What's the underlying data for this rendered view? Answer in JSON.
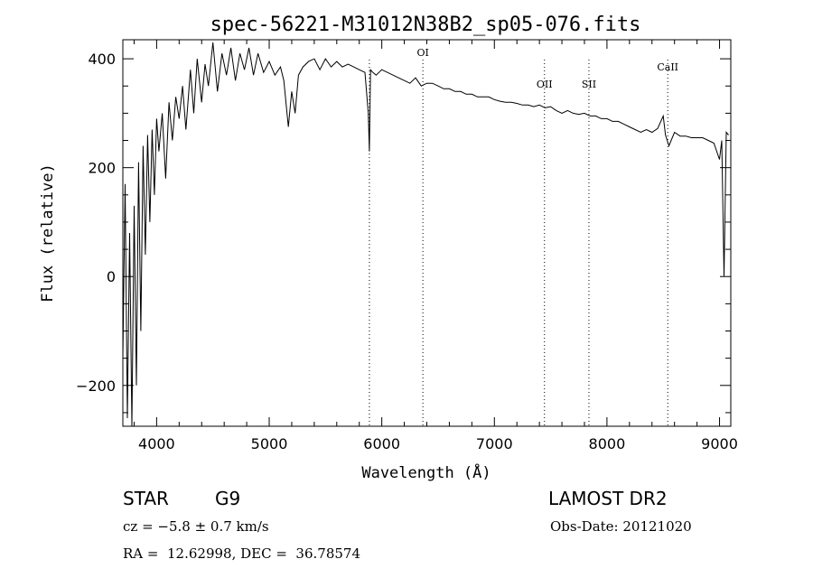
{
  "chart_data": {
    "type": "line",
    "title": "spec-56221-M31012N38B2_sp05-076.fits",
    "xlabel": "Wavelength (Å)",
    "ylabel": "Flux (relative)",
    "xlim": [
      3700,
      9100
    ],
    "ylim": [
      -275,
      435
    ],
    "x_ticks": [
      4000,
      5000,
      6000,
      7000,
      8000,
      9000
    ],
    "y_ticks": [
      -200,
      0,
      200,
      400
    ],
    "grid": false,
    "series": [
      {
        "values": [
          [
            3700,
            -150
          ],
          [
            3720,
            170
          ],
          [
            3740,
            -260
          ],
          [
            3760,
            80
          ],
          [
            3780,
            -280
          ],
          [
            3800,
            130
          ],
          [
            3820,
            -200
          ],
          [
            3840,
            210
          ],
          [
            3860,
            -100
          ],
          [
            3880,
            240
          ],
          [
            3900,
            40
          ],
          [
            3920,
            260
          ],
          [
            3940,
            100
          ],
          [
            3960,
            270
          ],
          [
            3980,
            150
          ],
          [
            4000,
            290
          ],
          [
            4020,
            230
          ],
          [
            4050,
            300
          ],
          [
            4080,
            180
          ],
          [
            4110,
            320
          ],
          [
            4140,
            250
          ],
          [
            4170,
            330
          ],
          [
            4200,
            290
          ],
          [
            4230,
            350
          ],
          [
            4260,
            270
          ],
          [
            4300,
            380
          ],
          [
            4330,
            300
          ],
          [
            4360,
            400
          ],
          [
            4400,
            320
          ],
          [
            4430,
            390
          ],
          [
            4460,
            350
          ],
          [
            4500,
            430
          ],
          [
            4540,
            340
          ],
          [
            4580,
            410
          ],
          [
            4620,
            370
          ],
          [
            4660,
            420
          ],
          [
            4700,
            360
          ],
          [
            4740,
            410
          ],
          [
            4780,
            380
          ],
          [
            4820,
            420
          ],
          [
            4860,
            370
          ],
          [
            4900,
            410
          ],
          [
            4950,
            375
          ],
          [
            5000,
            395
          ],
          [
            5050,
            370
          ],
          [
            5100,
            385
          ],
          [
            5130,
            360
          ],
          [
            5170,
            275
          ],
          [
            5200,
            340
          ],
          [
            5230,
            300
          ],
          [
            5260,
            370
          ],
          [
            5300,
            385
          ],
          [
            5350,
            395
          ],
          [
            5400,
            400
          ],
          [
            5450,
            380
          ],
          [
            5500,
            400
          ],
          [
            5550,
            385
          ],
          [
            5600,
            395
          ],
          [
            5650,
            385
          ],
          [
            5700,
            390
          ],
          [
            5750,
            385
          ],
          [
            5800,
            380
          ],
          [
            5850,
            375
          ],
          [
            5880,
            300
          ],
          [
            5890,
            230
          ],
          [
            5900,
            380
          ],
          [
            5920,
            375
          ],
          [
            5950,
            370
          ],
          [
            6000,
            380
          ],
          [
            6050,
            375
          ],
          [
            6100,
            370
          ],
          [
            6150,
            365
          ],
          [
            6200,
            360
          ],
          [
            6250,
            355
          ],
          [
            6300,
            365
          ],
          [
            6350,
            350
          ],
          [
            6400,
            355
          ],
          [
            6450,
            355
          ],
          [
            6500,
            350
          ],
          [
            6550,
            345
          ],
          [
            6600,
            345
          ],
          [
            6650,
            340
          ],
          [
            6700,
            340
          ],
          [
            6750,
            335
          ],
          [
            6800,
            335
          ],
          [
            6850,
            330
          ],
          [
            6900,
            330
          ],
          [
            6950,
            330
          ],
          [
            7000,
            325
          ],
          [
            7050,
            322
          ],
          [
            7100,
            320
          ],
          [
            7150,
            320
          ],
          [
            7200,
            318
          ],
          [
            7250,
            315
          ],
          [
            7300,
            315
          ],
          [
            7350,
            312
          ],
          [
            7400,
            315
          ],
          [
            7450,
            310
          ],
          [
            7500,
            312
          ],
          [
            7550,
            305
          ],
          [
            7600,
            300
          ],
          [
            7650,
            305
          ],
          [
            7700,
            300
          ],
          [
            7750,
            298
          ],
          [
            7800,
            300
          ],
          [
            7850,
            295
          ],
          [
            7900,
            295
          ],
          [
            7950,
            290
          ],
          [
            8000,
            290
          ],
          [
            8050,
            285
          ],
          [
            8100,
            285
          ],
          [
            8150,
            280
          ],
          [
            8200,
            275
          ],
          [
            8250,
            270
          ],
          [
            8300,
            265
          ],
          [
            8350,
            270
          ],
          [
            8400,
            265
          ],
          [
            8450,
            272
          ],
          [
            8500,
            295
          ],
          [
            8520,
            260
          ],
          [
            8550,
            240
          ],
          [
            8600,
            265
          ],
          [
            8650,
            258
          ],
          [
            8700,
            258
          ],
          [
            8750,
            255
          ],
          [
            8800,
            255
          ],
          [
            8850,
            255
          ],
          [
            8900,
            250
          ],
          [
            8950,
            245
          ],
          [
            9000,
            215
          ],
          [
            9020,
            250
          ],
          [
            9040,
            0
          ],
          [
            9060,
            265
          ],
          [
            9080,
            260
          ]
        ]
      }
    ],
    "lines": [
      {
        "label": "",
        "x": 5890
      },
      {
        "label": "OI",
        "x": 6365
      },
      {
        "label": "OII",
        "x": 7445
      },
      {
        "label": "SII",
        "x": 7840
      },
      {
        "label": "CaII",
        "x": 8540
      }
    ]
  },
  "info": {
    "class_label": "STAR",
    "subclass": "G9",
    "survey": "LAMOST DR2",
    "cz": "cz = −5.8 ± 0.7 km/s",
    "obs_date": "Obs-Date: 20121020",
    "coords": "RA =  12.62998, DEC =  36.78574"
  }
}
